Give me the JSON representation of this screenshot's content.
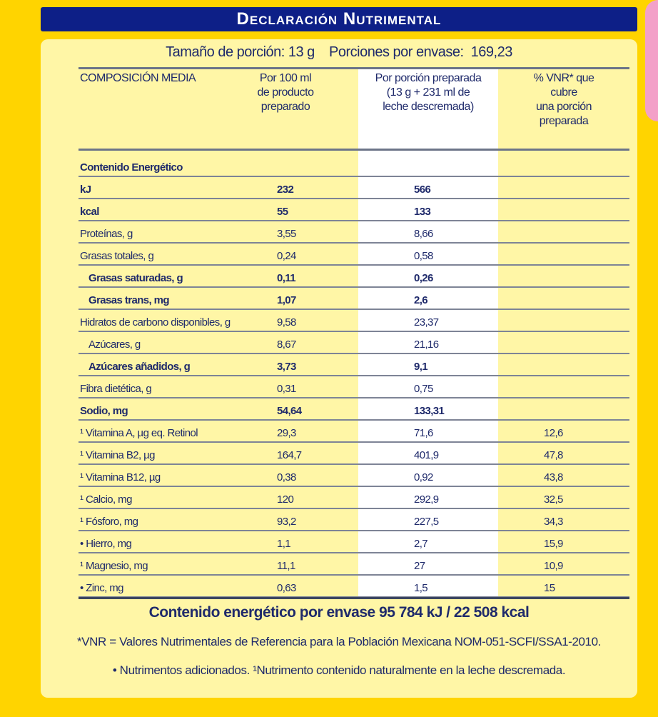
{
  "title": "Declaración Nutrimental",
  "serving": "Tamaño de porción: 13 g    Porciones por envase:  169,23",
  "headers": {
    "col1": "COMPOSICIÓN MEDIA",
    "col2": [
      "Por 100 ml",
      "de producto",
      "preparado"
    ],
    "col3": [
      "Por porción preparada",
      "(13 g + 231 ml de",
      "leche descremada)"
    ],
    "col4": [
      "% VNR* que",
      "cubre",
      "una porción",
      "preparada"
    ]
  },
  "rows": [
    {
      "label": "Contenido Energético",
      "v1": "",
      "v2": "",
      "v3": ""
    },
    {
      "label": "kJ",
      "v1": "232",
      "v2": "566",
      "v3": ""
    },
    {
      "label": "kcal",
      "v1": "55",
      "v2": "133",
      "v3": ""
    },
    {
      "label": "Proteínas, g",
      "v1": "3,55",
      "v2": "8,66",
      "v3": ""
    },
    {
      "label": "Grasas totales, g",
      "v1": "0,24",
      "v2": "0,58",
      "v3": ""
    },
    {
      "label": "Grasas saturadas, g",
      "v1": "0,11",
      "v2": "0,26",
      "v3": ""
    },
    {
      "label": "Grasas trans, mg",
      "v1": "1,07",
      "v2": "2,6",
      "v3": ""
    },
    {
      "label": "Hidratos de carbono disponibles, g",
      "v1": "9,58",
      "v2": "23,37",
      "v3": ""
    },
    {
      "label": "Azúcares, g",
      "v1": "8,67",
      "v2": "21,16",
      "v3": ""
    },
    {
      "label": "Azúcares añadidos, g",
      "v1": "3,73",
      "v2": "9,1",
      "v3": ""
    },
    {
      "label": "Fibra dietética, g",
      "v1": "0,31",
      "v2": "0,75",
      "v3": ""
    },
    {
      "label": "Sodio, mg",
      "v1": "54,64",
      "v2": "133,31",
      "v3": ""
    },
    {
      "label": "¹ Vitamina A, µg eq. Retinol",
      "v1": "29,3",
      "v2": "71,6",
      "v3": "12,6"
    },
    {
      "label": "¹ Vitamina B2, µg",
      "v1": "164,7",
      "v2": "401,9",
      "v3": "47,8"
    },
    {
      "label": "¹ Vitamina B12, µg",
      "v1": "0,38",
      "v2": "0,92",
      "v3": "43,8"
    },
    {
      "label": "¹ Calcio, mg",
      "v1": "120",
      "v2": "292,9",
      "v3": "32,5"
    },
    {
      "label": "¹ Fósforo, mg",
      "v1": "93,2",
      "v2": "227,5",
      "v3": "34,3"
    },
    {
      "label": "• Hierro, mg",
      "v1": "1,1",
      "v2": "2,7",
      "v3": "15,9"
    },
    {
      "label": "¹ Magnesio, mg",
      "v1": "11,1",
      "v2": "27",
      "v3": "10,9"
    },
    {
      "label": "• Zinc, mg",
      "v1": "0,63",
      "v2": "1,5",
      "v3": "15"
    }
  ],
  "footer": {
    "energy": "Contenido energético por envase 95 784 kJ / 22 508 kcal",
    "vnr": "*VNR = Valores Nutrimentales de Referencia para la Población Mexicana NOM-051-SCFI/SSA1-2010.",
    "notes": "• Nutrimentos adicionados. ¹Nutrimento contenido naturalmente en la leche descremada."
  }
}
